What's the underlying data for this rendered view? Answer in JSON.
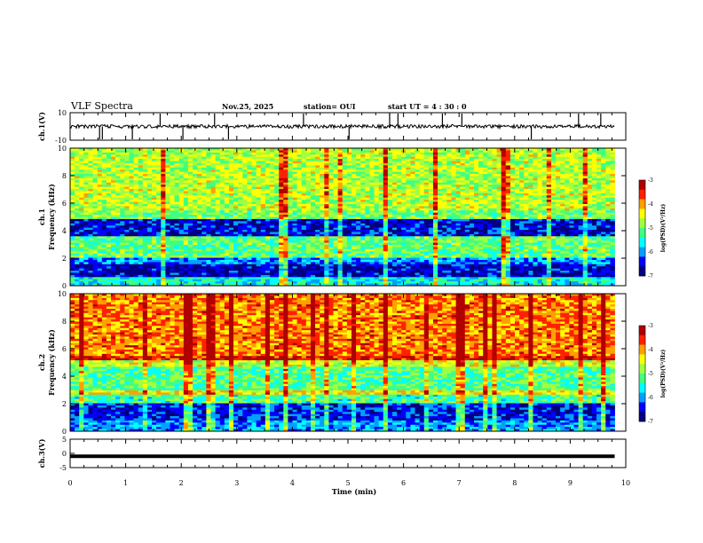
{
  "header": {
    "title": "VLF Spectra",
    "date": "Nov.25, 2025",
    "station": "station= OUI",
    "start": "start  UT =   4 : 30 : 0"
  },
  "chart_data": [
    {
      "type": "line",
      "panel": "ch1-waveform",
      "ylabel": "ch.1(V)",
      "ylim": [
        -10,
        10
      ],
      "yticks": [
        "10",
        "-10"
      ],
      "xlim": [
        0,
        10
      ],
      "baseline": 0,
      "spikes_min": [
        0.53,
        0.58,
        1.12,
        1.62,
        2.03,
        2.6,
        2.85,
        4.2,
        5.02,
        5.75,
        5.9,
        6.7,
        7.05,
        8.3,
        9.15,
        9.55
      ],
      "data_end_min": 9.8
    },
    {
      "type": "heatmap",
      "panel": "ch1-spectrogram",
      "ylabel": "ch.1 Frequency (kHz)",
      "ylim": [
        0,
        10
      ],
      "yticks": [
        "0",
        "2",
        "4",
        "6",
        "8",
        "10"
      ],
      "xlim": [
        0,
        10
      ],
      "data_end_min": 9.8,
      "bands_khz": [
        {
          "from": 0.0,
          "to": 0.6,
          "level": -5.6
        },
        {
          "from": 0.6,
          "to": 1.6,
          "level": -6.6
        },
        {
          "from": 1.6,
          "to": 2.0,
          "level": -6.0
        },
        {
          "from": 2.0,
          "to": 3.6,
          "level": -5.1
        },
        {
          "from": 3.6,
          "to": 4.9,
          "level": -6.5
        },
        {
          "from": 4.9,
          "to": 5.4,
          "level": -5.0
        },
        {
          "from": 5.4,
          "to": 10.0,
          "level": -4.7
        }
      ],
      "colorbar": {
        "label": "log(PSD)(V²/Hz)",
        "min": -7,
        "max": -3,
        "ticks": [
          "-3",
          "-4",
          "-5",
          "-6",
          "-7"
        ]
      }
    },
    {
      "type": "heatmap",
      "panel": "ch2-spectrogram",
      "ylabel": "ch.2 Frequency (kHz)",
      "ylim": [
        0,
        10
      ],
      "yticks": [
        "0",
        "2",
        "4",
        "6",
        "8",
        "10"
      ],
      "xlim": [
        0,
        10
      ],
      "data_end_min": 9.8,
      "bands_khz": [
        {
          "from": 0.0,
          "to": 0.8,
          "level": -6.0
        },
        {
          "from": 0.8,
          "to": 2.0,
          "level": -6.4
        },
        {
          "from": 2.0,
          "to": 2.6,
          "level": -5.3
        },
        {
          "from": 2.6,
          "to": 3.0,
          "level": -4.4
        },
        {
          "from": 3.0,
          "to": 4.7,
          "level": -5.2
        },
        {
          "from": 4.7,
          "to": 5.2,
          "level": -4.6
        },
        {
          "from": 5.2,
          "to": 5.5,
          "level": -3.4
        },
        {
          "from": 5.5,
          "to": 10.0,
          "level": -3.9
        }
      ],
      "colorbar": {
        "label": "log(PSD)(V²/Hz)",
        "min": -7,
        "max": -3,
        "ticks": [
          "-3",
          "-4",
          "-5",
          "-6",
          "-7"
        ]
      }
    },
    {
      "type": "line",
      "panel": "ch3-waveform",
      "ylabel": "ch.3(V)",
      "ylim": [
        -5,
        5
      ],
      "yticks": [
        "5",
        "0",
        "-5"
      ],
      "xlim": [
        0,
        10
      ],
      "constant_value": -1,
      "data_end_min": 9.8
    }
  ],
  "xaxis": {
    "label": "Time (min)",
    "ticks": [
      "0",
      "1",
      "2",
      "3",
      "4",
      "5",
      "6",
      "7",
      "8",
      "9",
      "10"
    ]
  },
  "colors": {
    "scale": [
      "#00007f",
      "#0000ff",
      "#00a0ff",
      "#00ffff",
      "#40ff80",
      "#a0ff40",
      "#ffff00",
      "#ffa000",
      "#ff2000",
      "#b00000"
    ]
  }
}
